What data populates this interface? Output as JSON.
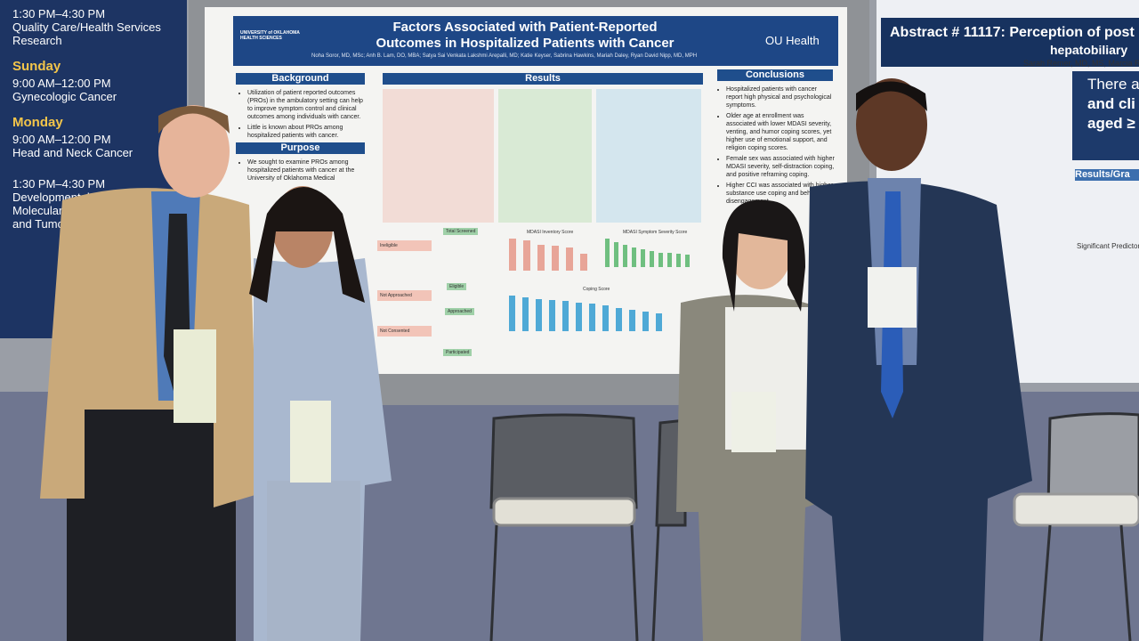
{
  "schedule": {
    "entries": [
      {
        "time": "1:30 PM–4:30 PM",
        "session": "Quality Care/Health Services Research"
      },
      {
        "day": "Sunday",
        "time": "9:00 AM–12:00 PM",
        "session": "Gynecologic Cancer"
      },
      {
        "day": "Monday",
        "time": "9:00 AM–12:00 PM",
        "session": "Head and Neck Cancer"
      },
      {
        "time": "1:30 PM–4:30 PM",
        "session_lines": [
          "Developmental Thera",
          "Molecularly T",
          "and Tumo"
        ]
      }
    ]
  },
  "poster": {
    "institution": "UNIVERSITY of OKLAHOMA HEALTH SCIENCES",
    "brand": "OU Health",
    "title_lines": [
      "Factors Associated with Patient-Reported",
      "Outcomes in Hospitalized Patients with Cancer"
    ],
    "authors": "Noha Soror, MD, MSc; Anh B. Lam, DO, MBA; Satya Sai Venkata Lakshmi Arepalli, MD; Katie Keyser, Sabrina Hawkins, Mariah Daley, Ryan David Nipp, MD, MPH",
    "background": {
      "heading": "Background",
      "bullets": [
        "Utilization of patient reported outcomes (PROs) in the ambulatory setting can help to improve symptom control and clinical outcomes among individuals with cancer.",
        "Little is known about PROs among hospitalized patients with cancer."
      ]
    },
    "purpose": {
      "heading": "Purpose",
      "bullets": [
        "We sought to examine PROs among hospitalized patients with cancer at the University of Oklahoma Medical"
      ]
    },
    "results": {
      "heading": "Results",
      "flow": [
        "Total Screened",
        "Ineligible",
        "Eligible",
        "Not Approached",
        "Approached",
        "Not Consented",
        "Participated"
      ],
      "chart_titles": [
        "MDASI Inventory Score",
        "MDASI Symptom Severity Score",
        "Coping Score"
      ]
    },
    "conclusions": {
      "heading": "Conclusions",
      "bullets": [
        "Hospitalized patients with cancer report high physical and psychological symptoms.",
        "Older age at enrollment was associated with lower MDASI severity, venting, and humor coping scores, yet higher use of emotional support, and religion coping scores.",
        "Female sex was associated with higher MDASI severity, self-distraction coping, and positive reframing coping.",
        "Higher CCI was associated with higher substance use coping and behavioral disengagement."
      ]
    }
  },
  "right_poster": {
    "title_lines": [
      "Abstract # 11117: Perception of post",
      "hepatobiliary"
    ],
    "authors": "Sarah Remer, MD, MS, Marcia Ru",
    "callout_lines": [
      "There a",
      "and cli",
      "aged ≥"
    ],
    "results_heading": "Results/Gra",
    "table_heading": "Significant Predictors"
  }
}
